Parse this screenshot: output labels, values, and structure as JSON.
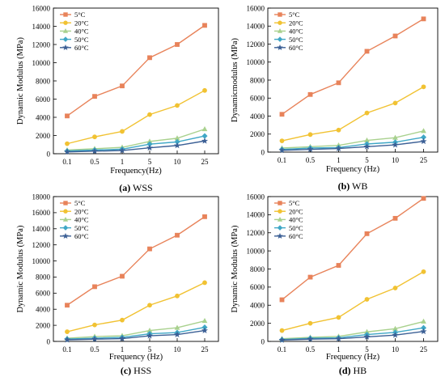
{
  "chart_data": [
    {
      "type": "line",
      "caption_letter": "(a)",
      "caption_text": " WSS",
      "xlabel": "Frequency(Hz)",
      "ylabel": "Dynamic Modulus (MPa)",
      "categories": [
        "0.1",
        "0.5",
        "1",
        "5",
        "10",
        "25"
      ],
      "ylim": [
        0,
        16000
      ],
      "yticks": [
        0,
        2000,
        4000,
        6000,
        8000,
        10000,
        12000,
        14000,
        16000
      ],
      "legend_position": "top-left",
      "series": [
        {
          "name": "5°C",
          "color": "#e8835a",
          "marker": "square",
          "values": [
            4150,
            6300,
            7450,
            10550,
            12000,
            14100
          ]
        },
        {
          "name": "20°C",
          "color": "#f1c232",
          "marker": "circle",
          "values": [
            1100,
            1850,
            2450,
            4300,
            5300,
            6950
          ]
        },
        {
          "name": "40°C",
          "color": "#a9d18e",
          "marker": "triangle",
          "values": [
            400,
            550,
            700,
            1350,
            1700,
            2700
          ]
        },
        {
          "name": "50°C",
          "color": "#3fa7c6",
          "marker": "diamond",
          "values": [
            300,
            400,
            500,
            1050,
            1300,
            1950
          ]
        },
        {
          "name": "60°C",
          "color": "#3b5f95",
          "marker": "star",
          "values": [
            200,
            280,
            350,
            650,
            900,
            1400
          ]
        }
      ]
    },
    {
      "type": "line",
      "caption_letter": "(b)",
      "caption_text": " WB",
      "xlabel": "Frequency (Hz)",
      "ylabel": "Dynamicmodulus (MPa)",
      "categories": [
        "0.1",
        "0.5",
        "1",
        "5",
        "10",
        "25"
      ],
      "ylim": [
        0,
        16000
      ],
      "yticks": [
        0,
        2000,
        4000,
        6000,
        8000,
        10000,
        12000,
        14000,
        16000
      ],
      "legend_position": "top-left",
      "series": [
        {
          "name": "5°C",
          "color": "#e8835a",
          "marker": "square",
          "values": [
            4200,
            6400,
            7700,
            11200,
            12900,
            14800
          ]
        },
        {
          "name": "20°C",
          "color": "#f1c232",
          "marker": "circle",
          "values": [
            1250,
            1950,
            2450,
            4350,
            5450,
            7250
          ]
        },
        {
          "name": "40°C",
          "color": "#a9d18e",
          "marker": "triangle",
          "values": [
            450,
            600,
            750,
            1300,
            1600,
            2350
          ]
        },
        {
          "name": "50°C",
          "color": "#3fa7c6",
          "marker": "diamond",
          "values": [
            300,
            450,
            500,
            900,
            1100,
            1650
          ]
        },
        {
          "name": "60°C",
          "color": "#3b5f95",
          "marker": "star",
          "values": [
            200,
            300,
            400,
            600,
            800,
            1200
          ]
        }
      ]
    },
    {
      "type": "line",
      "caption_letter": "(c)",
      "caption_text": " HSS",
      "xlabel": "Frequency (Hz)",
      "ylabel": "Dynamic Modulus (MPa)",
      "categories": [
        "0.1",
        "0.5",
        "1",
        "5",
        "10",
        "25"
      ],
      "ylim": [
        0,
        18000
      ],
      "yticks": [
        0,
        2000,
        4000,
        6000,
        8000,
        10000,
        12000,
        14000,
        16000,
        18000
      ],
      "legend_position": "top-left",
      "series": [
        {
          "name": "5°C",
          "color": "#e8835a",
          "marker": "square",
          "values": [
            4500,
            6800,
            8100,
            11500,
            13200,
            15500
          ]
        },
        {
          "name": "20°C",
          "color": "#f1c232",
          "marker": "circle",
          "values": [
            1200,
            2050,
            2650,
            4500,
            5650,
            7300
          ]
        },
        {
          "name": "40°C",
          "color": "#a9d18e",
          "marker": "triangle",
          "values": [
            400,
            600,
            700,
            1350,
            1700,
            2550
          ]
        },
        {
          "name": "50°C",
          "color": "#3fa7c6",
          "marker": "diamond",
          "values": [
            300,
            400,
            500,
            950,
            1100,
            1750
          ]
        },
        {
          "name": "60°C",
          "color": "#3b5f95",
          "marker": "star",
          "values": [
            200,
            280,
            350,
            700,
            850,
            1350
          ]
        }
      ]
    },
    {
      "type": "line",
      "caption_letter": "(d)",
      "caption_text": " HB",
      "xlabel": "Frequency (Hz)",
      "ylabel": "Dynamic Modulus (MPa)",
      "categories": [
        "0.1",
        "0.5",
        "1",
        "5",
        "10",
        "25"
      ],
      "ylim": [
        0,
        16000
      ],
      "yticks": [
        0,
        2000,
        4000,
        6000,
        8000,
        10000,
        12000,
        14000,
        16000
      ],
      "legend_position": "top-left",
      "series": [
        {
          "name": "5°C",
          "color": "#e8835a",
          "marker": "square",
          "values": [
            4600,
            7100,
            8400,
            11900,
            13600,
            15800
          ]
        },
        {
          "name": "20°C",
          "color": "#f1c232",
          "marker": "circle",
          "values": [
            1200,
            2000,
            2650,
            4650,
            5900,
            7700
          ]
        },
        {
          "name": "40°C",
          "color": "#a9d18e",
          "marker": "triangle",
          "values": [
            300,
            450,
            550,
            1050,
            1400,
            2200
          ]
        },
        {
          "name": "50°C",
          "color": "#3fa7c6",
          "marker": "diamond",
          "values": [
            200,
            350,
            400,
            750,
            1000,
            1500
          ]
        },
        {
          "name": "60°C",
          "color": "#3b5f95",
          "marker": "star",
          "values": [
            150,
            250,
            300,
            500,
            700,
            1100
          ]
        }
      ]
    }
  ]
}
